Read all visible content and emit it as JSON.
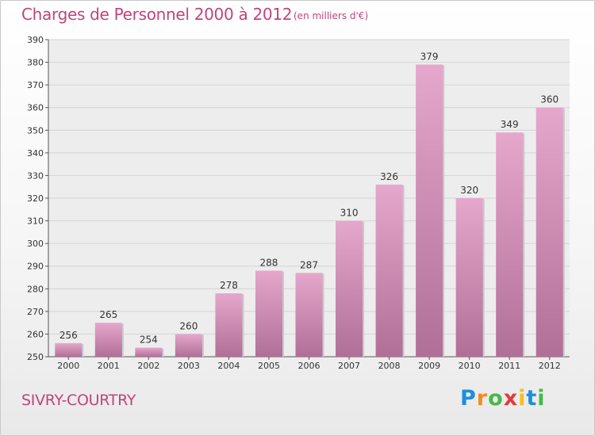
{
  "header": {
    "title": "Charges de Personnel 2000 à 2012",
    "subtitle": "(en milliers d'€)"
  },
  "footer": {
    "commune": "SIVRY-COURTRY",
    "logo_letters": [
      "P",
      "r",
      "o",
      "x",
      "i",
      "t",
      "i"
    ]
  },
  "colors": {
    "title": "#c0447a",
    "bar_top": "#e6a7cc",
    "bar_bottom": "#b06f97",
    "logo": [
      "#1e8fd8",
      "#f28c1e",
      "#46b94a",
      "#e23a3a",
      "#f2c21e",
      "#1e8fd8",
      "#46b94a"
    ]
  },
  "chart_data": {
    "type": "bar",
    "categories": [
      "2000",
      "2001",
      "2002",
      "2003",
      "2004",
      "2005",
      "2006",
      "2007",
      "2008",
      "2009",
      "2010",
      "2011",
      "2012"
    ],
    "values": [
      256,
      265,
      254,
      260,
      278,
      288,
      287,
      310,
      326,
      379,
      320,
      349,
      360
    ],
    "ylim": [
      250,
      390
    ],
    "yticks": [
      250,
      260,
      270,
      280,
      290,
      300,
      310,
      320,
      330,
      340,
      350,
      360,
      370,
      380,
      390
    ],
    "grid": true,
    "legend": "none"
  }
}
